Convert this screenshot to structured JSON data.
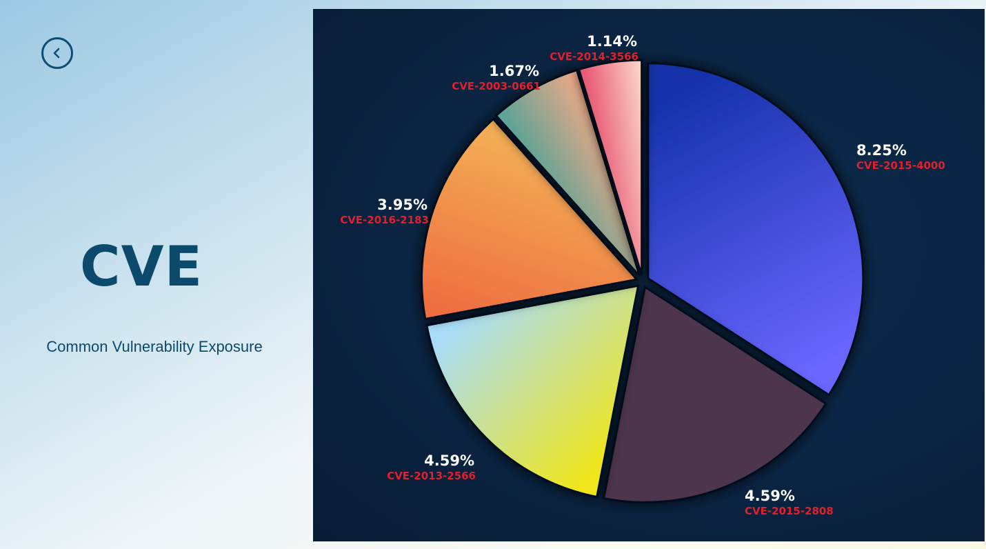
{
  "header": {
    "back_icon": "chevron-left-icon"
  },
  "title": "CVE",
  "subtitle": "Common Vulnerability Exposure",
  "colors": {
    "title": "#0b4a6c",
    "panel": "#0a2442",
    "label_value": "#ffffff",
    "label_name": "#e0202a"
  },
  "chart_data": {
    "type": "pie",
    "title": "",
    "start_angle_deg": 0,
    "direction": "clockwise",
    "series": [
      {
        "name": "CVE-2015-4000",
        "value": 8.25,
        "label": "8.25%",
        "color_from": "#6a66ff",
        "color_to": "#1230a8"
      },
      {
        "name": "CVE-2015-2808",
        "value": 4.59,
        "label": "4.59%",
        "color_from": "#4e354d",
        "color_to": "#4e354d"
      },
      {
        "name": "CVE-2013-2566",
        "value": 4.59,
        "label": "4.59%",
        "color_from": "#a8dcf8",
        "color_to": "#f0e61a"
      },
      {
        "name": "CVE-2016-2183",
        "value": 3.95,
        "label": "3.95%",
        "color_from": "#f3ac55",
        "color_to": "#ee6e40"
      },
      {
        "name": "CVE-2003-0661",
        "value": 1.67,
        "label": "1.67%",
        "color_from": "#e9a988",
        "color_to": "#5ea394"
      },
      {
        "name": "CVE-2014-3566",
        "value": 1.14,
        "label": "1.14%",
        "color_from": "#fbcfc4",
        "color_to": "#e85a76"
      }
    ]
  }
}
